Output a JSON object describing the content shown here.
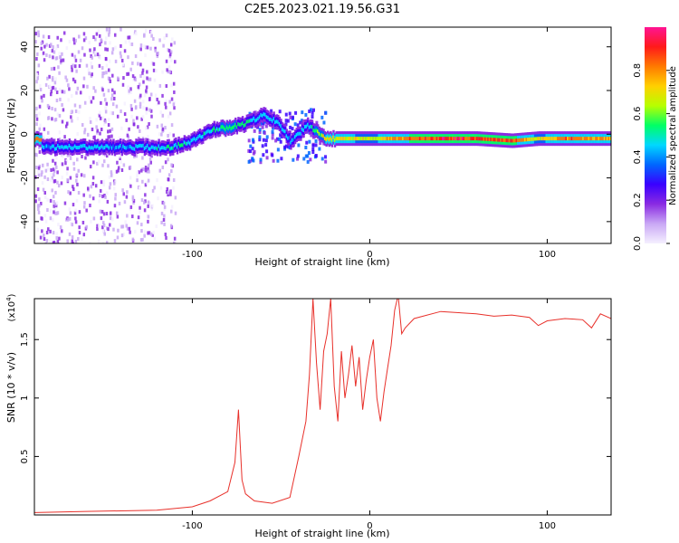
{
  "title": "C2E5.2023.021.19.56.G31",
  "colors": {
    "snr_line": "#e8302a",
    "background": "#ffffff",
    "colormap": [
      "#f5f0ff",
      "#c9a8f5",
      "#8a2be2",
      "#3a00ff",
      "#0066ff",
      "#00d8ff",
      "#00ff66",
      "#b6ff00",
      "#ffd000",
      "#ff7a00",
      "#ff1a1a",
      "#ff1493"
    ]
  },
  "chart_data": [
    {
      "type": "heatmap",
      "xlabel": "Height of straight line (km)",
      "ylabel": "Frequency (Hz)",
      "xlim": [
        -189,
        136
      ],
      "ylim": [
        -50,
        49
      ],
      "xticks": [
        -100,
        0,
        100
      ],
      "yticks": [
        -40,
        -20,
        0,
        20,
        40
      ],
      "colorbar": {
        "label": "Normalized spectral amplitude",
        "range": [
          0,
          1
        ],
        "ticks": [
          "0.0",
          "0.2",
          "0.4",
          "0.6",
          "0.8"
        ]
      },
      "ridge": [
        {
          "x": -185,
          "y": -6,
          "amp": 0.45
        },
        {
          "x": -170,
          "y": -6,
          "amp": 0.5
        },
        {
          "x": -155,
          "y": -6,
          "amp": 0.48
        },
        {
          "x": -140,
          "y": -6,
          "amp": 0.45
        },
        {
          "x": -125,
          "y": -6,
          "amp": 0.5
        },
        {
          "x": -112,
          "y": -6,
          "amp": 0.55
        },
        {
          "x": -100,
          "y": -3,
          "amp": 0.5
        },
        {
          "x": -90,
          "y": 2,
          "amp": 0.55
        },
        {
          "x": -80,
          "y": 3,
          "amp": 0.6
        },
        {
          "x": -70,
          "y": 5,
          "amp": 0.55
        },
        {
          "x": -60,
          "y": 9,
          "amp": 0.5
        },
        {
          "x": -52,
          "y": 5,
          "amp": 0.5
        },
        {
          "x": -45,
          "y": -3,
          "amp": 0.45
        },
        {
          "x": -35,
          "y": 4,
          "amp": 0.5
        },
        {
          "x": -25,
          "y": -2,
          "amp": 0.75
        },
        {
          "x": -10,
          "y": -2,
          "amp": 0.75
        },
        {
          "x": 0,
          "y": -2,
          "amp": 0.7
        },
        {
          "x": 20,
          "y": -2,
          "amp": 0.9
        },
        {
          "x": 40,
          "y": -2,
          "amp": 1.0
        },
        {
          "x": 60,
          "y": -2,
          "amp": 0.95
        },
        {
          "x": 80,
          "y": -3,
          "amp": 0.95
        },
        {
          "x": 95,
          "y": -2,
          "amp": 0.7
        },
        {
          "x": 110,
          "y": -2,
          "amp": 0.9
        },
        {
          "x": 136,
          "y": -2,
          "amp": 0.85
        }
      ]
    },
    {
      "type": "line",
      "xlabel": "Height of straight line (km)",
      "ylabel": "SNR (10 * v/v)",
      "y_multiplier": "(x10^4)",
      "xlim": [
        -189,
        136
      ],
      "ylim": [
        0,
        1.85
      ],
      "xticks": [
        -100,
        0,
        100
      ],
      "yticks": [
        0.5,
        1.0,
        1.5
      ],
      "series": [
        {
          "x": [
            -189,
            -160,
            -120,
            -100,
            -90,
            -80,
            -76,
            -74,
            -72,
            -70,
            -65,
            -55,
            -45,
            -40,
            -36,
            -34,
            -32,
            -30,
            -28,
            -26,
            -24,
            -22,
            -20,
            -18,
            -16,
            -14,
            -12,
            -10,
            -8,
            -6,
            -4,
            -2,
            0,
            2,
            4,
            6,
            8,
            10,
            12,
            14,
            16,
            18,
            20,
            25,
            30,
            40,
            50,
            60,
            70,
            80,
            90,
            95,
            100,
            110,
            120,
            125,
            130,
            136
          ],
          "y": [
            0.02,
            0.03,
            0.04,
            0.07,
            0.12,
            0.2,
            0.45,
            0.9,
            0.3,
            0.18,
            0.12,
            0.1,
            0.15,
            0.5,
            0.8,
            1.2,
            1.85,
            1.3,
            0.9,
            1.4,
            1.55,
            1.85,
            1.1,
            0.8,
            1.4,
            1.0,
            1.2,
            1.45,
            1.1,
            1.35,
            0.9,
            1.15,
            1.35,
            1.5,
            1.0,
            0.8,
            1.05,
            1.25,
            1.45,
            1.75,
            1.88,
            1.55,
            1.6,
            1.68,
            1.7,
            1.74,
            1.73,
            1.72,
            1.7,
            1.71,
            1.69,
            1.62,
            1.66,
            1.68,
            1.67,
            1.6,
            1.72,
            1.68
          ]
        }
      ]
    }
  ]
}
